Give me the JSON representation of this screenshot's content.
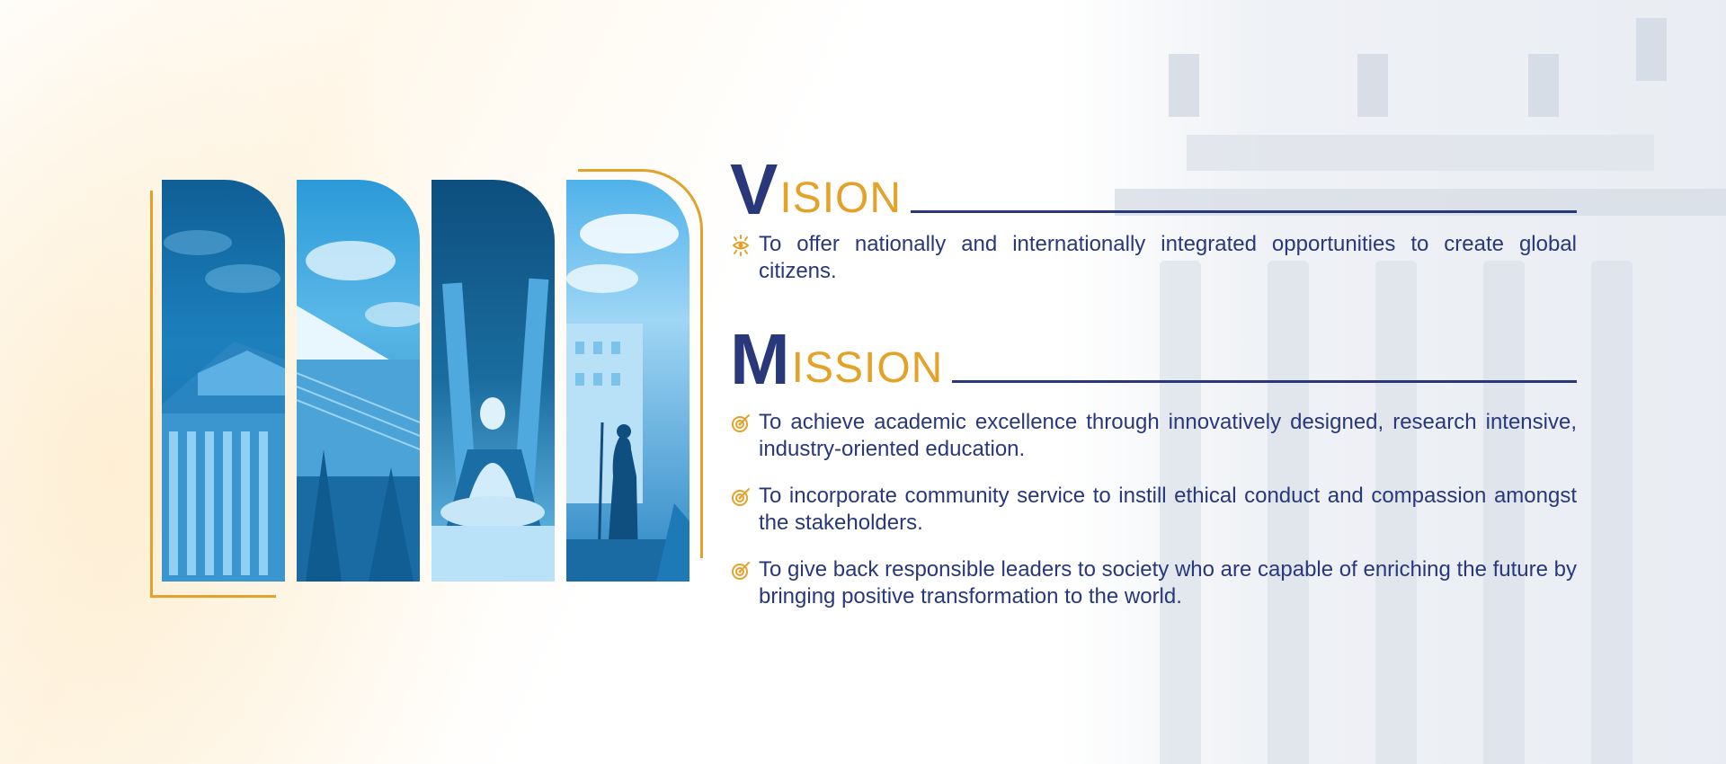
{
  "colors": {
    "navy": "#28387a",
    "gold": "#e3a22a"
  },
  "vision": {
    "initial": "V",
    "rest": "ISION",
    "items": [
      {
        "icon": "eye-icon",
        "text": "To offer nationally and internationally integrated opportunities to create global citizens."
      }
    ]
  },
  "mission": {
    "initial": "M",
    "rest": "ISSION",
    "items": [
      {
        "icon": "target-icon",
        "text": "To achieve academic excellence through innovatively designed, research intensive, industry-oriented education."
      },
      {
        "icon": "target-icon",
        "text": "To incorporate community service to instill ethical conduct and compassion amongst the stakeholders."
      },
      {
        "icon": "target-icon",
        "text": "To give back responsible leaders to society who are capable of enriching the future by bringing positive transformation to the world."
      }
    ]
  },
  "gallery": {
    "panels": [
      {
        "name": "campus-building-photo"
      },
      {
        "name": "university-entrance-photo"
      },
      {
        "name": "buddha-statue-photo"
      },
      {
        "name": "gandhi-statue-photo"
      }
    ]
  }
}
